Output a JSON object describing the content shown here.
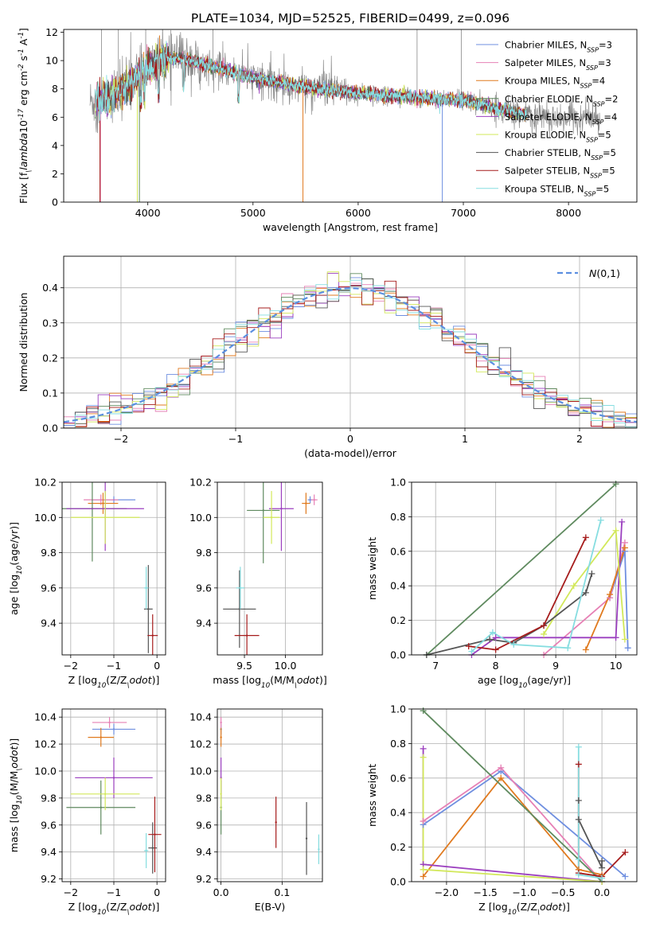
{
  "figure": {
    "title": "PLATE=1034, MJD=52525, FIBERID=0499, z=0.096"
  },
  "colors": {
    "Chabrier MILES": "#6f8fe0",
    "Salpeter MILES": "#e680b5",
    "Kroupa MILES": "#e07a1f",
    "Chabrier ELODIE": "#5f8a5f",
    "Salpeter ELODIE": "#9b3fbf",
    "Kroupa ELODIE": "#d2e85a",
    "Chabrier STELIB": "#555555",
    "Salpeter STELIB": "#a61c1c",
    "Kroupa STELIB": "#86dde0",
    "observed": "#888888",
    "normal": "#5b8fe0"
  },
  "chart_data": [
    {
      "id": "spectrum",
      "type": "line",
      "xlabel": "wavelength [Angstrom, rest frame]",
      "ylabel": "Flux [f$_\\lambda$10$^{-17}$ erg cm$^{-2}$ s$^{-1}$ A$^{-1}$]",
      "xlim": [
        3200,
        8650
      ],
      "ylim": [
        0,
        12.2
      ],
      "xticks": [
        4000,
        5000,
        6000,
        7000,
        8000
      ],
      "yticks": [
        0,
        2,
        4,
        6,
        8,
        10,
        12
      ],
      "legend": "top-right",
      "legend_entries": [
        {
          "model": "Chabrier MILES",
          "label": "Chabrier MILES, N",
          "sub": "SSP",
          "tail": "=3"
        },
        {
          "model": "Salpeter MILES",
          "label": "Salpeter MILES, N",
          "sub": "SSP",
          "tail": "=3"
        },
        {
          "model": "Kroupa MILES",
          "label": "Kroupa MILES, N",
          "sub": "SSP",
          "tail": "=4"
        },
        {
          "model": "Chabrier ELODIE",
          "label": "Chabrier ELODIE, N",
          "sub": "SSP",
          "tail": "=2"
        },
        {
          "model": "Salpeter ELODIE",
          "label": "Salpeter ELODIE, N",
          "sub": "SSP",
          "tail": "=4"
        },
        {
          "model": "Kroupa ELODIE",
          "label": "Kroupa ELODIE, N",
          "sub": "SSP",
          "tail": "=5"
        },
        {
          "model": "Chabrier STELIB",
          "label": "Chabrier STELIB, N",
          "sub": "SSP",
          "tail": "=5"
        },
        {
          "model": "Salpeter STELIB",
          "label": "Salpeter STELIB, N",
          "sub": "SSP",
          "tail": "=5"
        },
        {
          "model": "Kroupa STELIB",
          "label": "Kroupa STELIB, N",
          "sub": "SSP",
          "tail": "=5"
        }
      ],
      "continuum": {
        "x": [
          3450,
          3600,
          3800,
          4000,
          4100,
          4300,
          4600,
          5000,
          5500,
          6000,
          6500,
          7000,
          7500,
          7650
        ],
        "y": [
          7.1,
          7.3,
          8.2,
          9.5,
          10.0,
          10.2,
          9.6,
          8.8,
          8.1,
          7.7,
          7.4,
          7.2,
          6.3,
          6.1
        ]
      },
      "observed_range": [
        3450,
        8300
      ],
      "model_range": [
        3500,
        7600
      ]
    },
    {
      "id": "residuals",
      "type": "line",
      "xlabel": "(data-model)/error",
      "ylabel": "Normed distribution",
      "xlim": [
        -2.5,
        2.5
      ],
      "ylim": [
        0,
        0.49
      ],
      "xticks": [
        -2,
        -1,
        0,
        1,
        2
      ],
      "yticks": [
        0.0,
        0.1,
        0.2,
        0.3,
        0.4
      ],
      "legend": "top-right",
      "legend_label": "$\\mathcal{N}(0,1)$",
      "bin_width": 0.1
    },
    {
      "id": "age_vs_Z",
      "type": "scatter",
      "xlabel": "Z [log$_{10}$(Z/Z$_\\odot$)]",
      "ylabel": "age  [log$_{10}$(age/yr)]",
      "xlim": [
        -2.2,
        0.2
      ],
      "ylim": [
        9.22,
        10.2
      ],
      "xticks": [
        -2,
        -1,
        0
      ],
      "yticks": [
        9.4,
        9.6,
        9.8,
        10.0,
        10.2
      ],
      "points": [
        {
          "model": "Chabrier MILES",
          "x": -1.0,
          "xerr": 0.5,
          "y": 10.1,
          "yerr": 0.02
        },
        {
          "model": "Salpeter MILES",
          "x": -1.3,
          "xerr": 0.4,
          "y": 10.1,
          "yerr": 0.03
        },
        {
          "model": "Kroupa MILES",
          "x": -1.25,
          "xerr": 0.35,
          "y": 10.08,
          "yerr": 0.06
        },
        {
          "model": "Chabrier ELODIE",
          "x": -1.5,
          "xerr": 0.8,
          "y": 10.05,
          "yerr": 0.3
        },
        {
          "model": "Salpeter ELODIE",
          "x": -1.2,
          "xerr": 0.9,
          "y": 10.05,
          "yerr": 0.24
        },
        {
          "model": "Kroupa ELODIE",
          "x": -1.2,
          "xerr": 0.8,
          "y": 10.0,
          "yerr": 0.15
        },
        {
          "model": "Chabrier STELIB",
          "x": -0.2,
          "xerr": 0.1,
          "y": 9.48,
          "yerr": 0.25
        },
        {
          "model": "Salpeter STELIB",
          "x": -0.1,
          "xerr": 0.12,
          "y": 9.33,
          "yerr": 0.12
        },
        {
          "model": "Kroupa STELIB",
          "x": -0.25,
          "xerr": 0.05,
          "y": 9.6,
          "yerr": 0.12
        }
      ]
    },
    {
      "id": "age_vs_mass",
      "type": "scatter",
      "xlabel": "mass [log$_{10}$(M/M$_\\odot$)]",
      "ylabel": "",
      "xlim": [
        9.17,
        10.45
      ],
      "ylim": [
        9.22,
        10.2
      ],
      "xticks": [
        9.5,
        10.0
      ],
      "yticks": [
        9.4,
        9.6,
        9.8,
        10.0,
        10.2
      ],
      "points": [
        {
          "model": "Chabrier MILES",
          "x": 10.3,
          "xerr": 0.03,
          "y": 10.1,
          "yerr": 0.02
        },
        {
          "model": "Salpeter MILES",
          "x": 10.35,
          "xerr": 0.04,
          "y": 10.1,
          "yerr": 0.03
        },
        {
          "model": "Kroupa MILES",
          "x": 10.25,
          "xerr": 0.05,
          "y": 10.08,
          "yerr": 0.06
        },
        {
          "model": "Chabrier ELODIE",
          "x": 9.73,
          "xerr": 0.2,
          "y": 10.04,
          "yerr": 0.3
        },
        {
          "model": "Salpeter ELODIE",
          "x": 9.95,
          "xerr": 0.15,
          "y": 10.05,
          "yerr": 0.24
        },
        {
          "model": "Kroupa ELODIE",
          "x": 9.83,
          "xerr": 0.1,
          "y": 10.0,
          "yerr": 0.15
        },
        {
          "model": "Chabrier STELIB",
          "x": 9.44,
          "xerr": 0.2,
          "y": 9.48,
          "yerr": 0.22
        },
        {
          "model": "Salpeter STELIB",
          "x": 9.53,
          "xerr": 0.15,
          "y": 9.33,
          "yerr": 0.12
        },
        {
          "model": "Kroupa STELIB",
          "x": 9.45,
          "xerr": 0.05,
          "y": 9.6,
          "yerr": 0.12
        }
      ]
    },
    {
      "id": "weight_vs_age",
      "type": "line",
      "xlabel": "age  [log$_{10}$(age/yr)]",
      "ylabel": "mass weight",
      "xlim": [
        6.6,
        10.35
      ],
      "ylim": [
        0,
        1.0
      ],
      "xticks": [
        7,
        8,
        9,
        10
      ],
      "yticks": [
        0.0,
        0.2,
        0.4,
        0.6,
        0.8,
        1.0
      ],
      "series": [
        {
          "model": "Chabrier MILES",
          "x": [
            9.9,
            10.15,
            10.2
          ],
          "y": [
            0.33,
            0.6,
            0.04
          ]
        },
        {
          "model": "Salpeter MILES",
          "x": [
            8.8,
            9.9,
            10.15
          ],
          "y": [
            0.0,
            0.33,
            0.65
          ]
        },
        {
          "model": "Kroupa MILES",
          "x": [
            9.5,
            9.9,
            10.15
          ],
          "y": [
            0.03,
            0.35,
            0.62
          ]
        },
        {
          "model": "Chabrier ELODIE",
          "x": [
            6.85,
            10.0
          ],
          "y": [
            0.0,
            0.99
          ]
        },
        {
          "model": "Salpeter ELODIE",
          "x": [
            7.6,
            8.0,
            10.0,
            10.1
          ],
          "y": [
            0.0,
            0.1,
            0.1,
            0.77
          ]
        },
        {
          "model": "Kroupa ELODIE",
          "x": [
            8.8,
            9.3,
            10.0,
            10.15
          ],
          "y": [
            0.12,
            0.4,
            0.72,
            0.09
          ]
        },
        {
          "model": "Chabrier STELIB",
          "x": [
            6.85,
            7.9,
            8.3,
            8.8,
            9.5,
            9.6
          ],
          "y": [
            0.0,
            0.09,
            0.07,
            0.17,
            0.36,
            0.47
          ]
        },
        {
          "model": "Salpeter STELIB",
          "x": [
            7.55,
            8.0,
            8.8,
            9.5
          ],
          "y": [
            0.05,
            0.03,
            0.17,
            0.68
          ]
        },
        {
          "model": "Kroupa STELIB",
          "x": [
            7.6,
            7.95,
            8.3,
            9.2,
            9.75
          ],
          "y": [
            0.02,
            0.13,
            0.06,
            0.04,
            0.78
          ]
        }
      ]
    },
    {
      "id": "mass_vs_Z",
      "type": "scatter",
      "xlabel": "Z [log$_{10}$(Z/Z$_\\odot$)]",
      "ylabel": "mass [log$_{10}$(M/M$_\\odot$)]",
      "xlim": [
        -2.2,
        0.2
      ],
      "ylim": [
        9.18,
        10.46
      ],
      "xticks": [
        -2,
        -1,
        0
      ],
      "yticks": [
        9.2,
        9.4,
        9.6,
        9.8,
        10.0,
        10.2,
        10.4
      ],
      "points": [
        {
          "model": "Chabrier MILES",
          "x": -1.0,
          "xerr": 0.5,
          "y": 10.31,
          "yerr": 0.04
        },
        {
          "model": "Salpeter MILES",
          "x": -1.1,
          "xerr": 0.4,
          "y": 10.36,
          "yerr": 0.04
        },
        {
          "model": "Kroupa MILES",
          "x": -1.3,
          "xerr": 0.3,
          "y": 10.25,
          "yerr": 0.07
        },
        {
          "model": "Chabrier ELODIE",
          "x": -1.3,
          "xerr": 0.8,
          "y": 9.73,
          "yerr": 0.2
        },
        {
          "model": "Salpeter ELODIE",
          "x": -1.0,
          "xerr": 0.9,
          "y": 9.95,
          "yerr": 0.15
        },
        {
          "model": "Kroupa ELODIE",
          "x": -1.2,
          "xerr": 0.8,
          "y": 9.83,
          "yerr": 0.12
        },
        {
          "model": "Chabrier STELIB",
          "x": -0.1,
          "xerr": 0.1,
          "y": 9.43,
          "yerr": 0.19
        },
        {
          "model": "Salpeter STELIB",
          "x": -0.05,
          "xerr": 0.15,
          "y": 9.53,
          "yerr": 0.28
        },
        {
          "model": "Kroupa STELIB",
          "x": -0.25,
          "xerr": 0.05,
          "y": 9.41,
          "yerr": 0.13
        }
      ]
    },
    {
      "id": "mass_vs_EBV",
      "type": "scatter",
      "xlabel": "E(B-V)",
      "ylabel": "",
      "xlim": [
        -0.006,
        0.166
      ],
      "ylim": [
        9.18,
        10.46
      ],
      "xticks": [
        0.0,
        0.1
      ],
      "yticks": [
        9.2,
        9.4,
        9.6,
        9.8,
        10.0,
        10.2,
        10.4
      ],
      "points": [
        {
          "model": "Chabrier MILES",
          "x": 0.0,
          "y": 10.31,
          "yerr": 0.04
        },
        {
          "model": "Salpeter MILES",
          "x": 0.0,
          "y": 10.36,
          "yerr": 0.04
        },
        {
          "model": "Kroupa MILES",
          "x": 0.0,
          "y": 10.25,
          "yerr": 0.07
        },
        {
          "model": "Chabrier ELODIE",
          "x": 0.0,
          "y": 9.73,
          "yerr": 0.2
        },
        {
          "model": "Salpeter ELODIE",
          "x": 0.0,
          "y": 9.95,
          "yerr": 0.15
        },
        {
          "model": "Kroupa ELODIE",
          "x": 0.0,
          "y": 9.83,
          "yerr": 0.12
        },
        {
          "model": "Chabrier STELIB",
          "x": 0.14,
          "y": 9.5,
          "yerr": 0.27
        },
        {
          "model": "Salpeter STELIB",
          "x": 0.09,
          "y": 9.62,
          "yerr": 0.19
        },
        {
          "model": "Kroupa STELIB",
          "x": 0.16,
          "y": 9.42,
          "yerr": 0.11
        }
      ]
    },
    {
      "id": "weight_vs_Z",
      "type": "line",
      "xlabel": "Z [log$_{10}$(Z/Z$_\\odot$)]",
      "ylabel": "mass weight",
      "xlim": [
        -2.45,
        0.45
      ],
      "ylim": [
        0,
        1.0
      ],
      "xticks": [
        -2.0,
        -1.5,
        -1.0,
        -0.5,
        0.0
      ],
      "yticks": [
        0.0,
        0.2,
        0.4,
        0.6,
        0.8,
        1.0
      ],
      "series": [
        {
          "model": "Chabrier MILES",
          "x": [
            -2.3,
            -1.3,
            0.3
          ],
          "y": [
            0.33,
            0.64,
            0.03
          ]
        },
        {
          "model": "Salpeter MILES",
          "x": [
            -2.3,
            -1.3,
            0.0
          ],
          "y": [
            0.35,
            0.66,
            0.0
          ]
        },
        {
          "model": "Kroupa MILES",
          "x": [
            -2.3,
            -1.3,
            -0.3,
            0.0
          ],
          "y": [
            0.03,
            0.6,
            0.07,
            0.04
          ]
        },
        {
          "model": "Chabrier ELODIE",
          "x": [
            -2.3,
            0.0
          ],
          "y": [
            0.99,
            0.0
          ]
        },
        {
          "model": "Salpeter ELODIE",
          "x": [
            -2.3,
            -2.3,
            0.0
          ],
          "y": [
            0.77,
            0.1,
            0.0
          ]
        },
        {
          "model": "Kroupa ELODIE",
          "x": [
            -2.3,
            -2.3,
            0.0
          ],
          "y": [
            0.72,
            0.07,
            0.0
          ]
        },
        {
          "model": "Chabrier STELIB",
          "x": [
            -0.3,
            -0.3,
            0.0,
            0.0
          ],
          "y": [
            0.47,
            0.36,
            0.08,
            0.12
          ]
        },
        {
          "model": "Salpeter STELIB",
          "x": [
            -0.3,
            -0.3,
            0.0,
            0.3
          ],
          "y": [
            0.68,
            0.05,
            0.03,
            0.17
          ]
        },
        {
          "model": "Kroupa STELIB",
          "x": [
            -0.3,
            -0.3,
            -0.3,
            0.0
          ],
          "y": [
            0.78,
            0.13,
            0.04,
            0.02
          ]
        }
      ]
    }
  ]
}
